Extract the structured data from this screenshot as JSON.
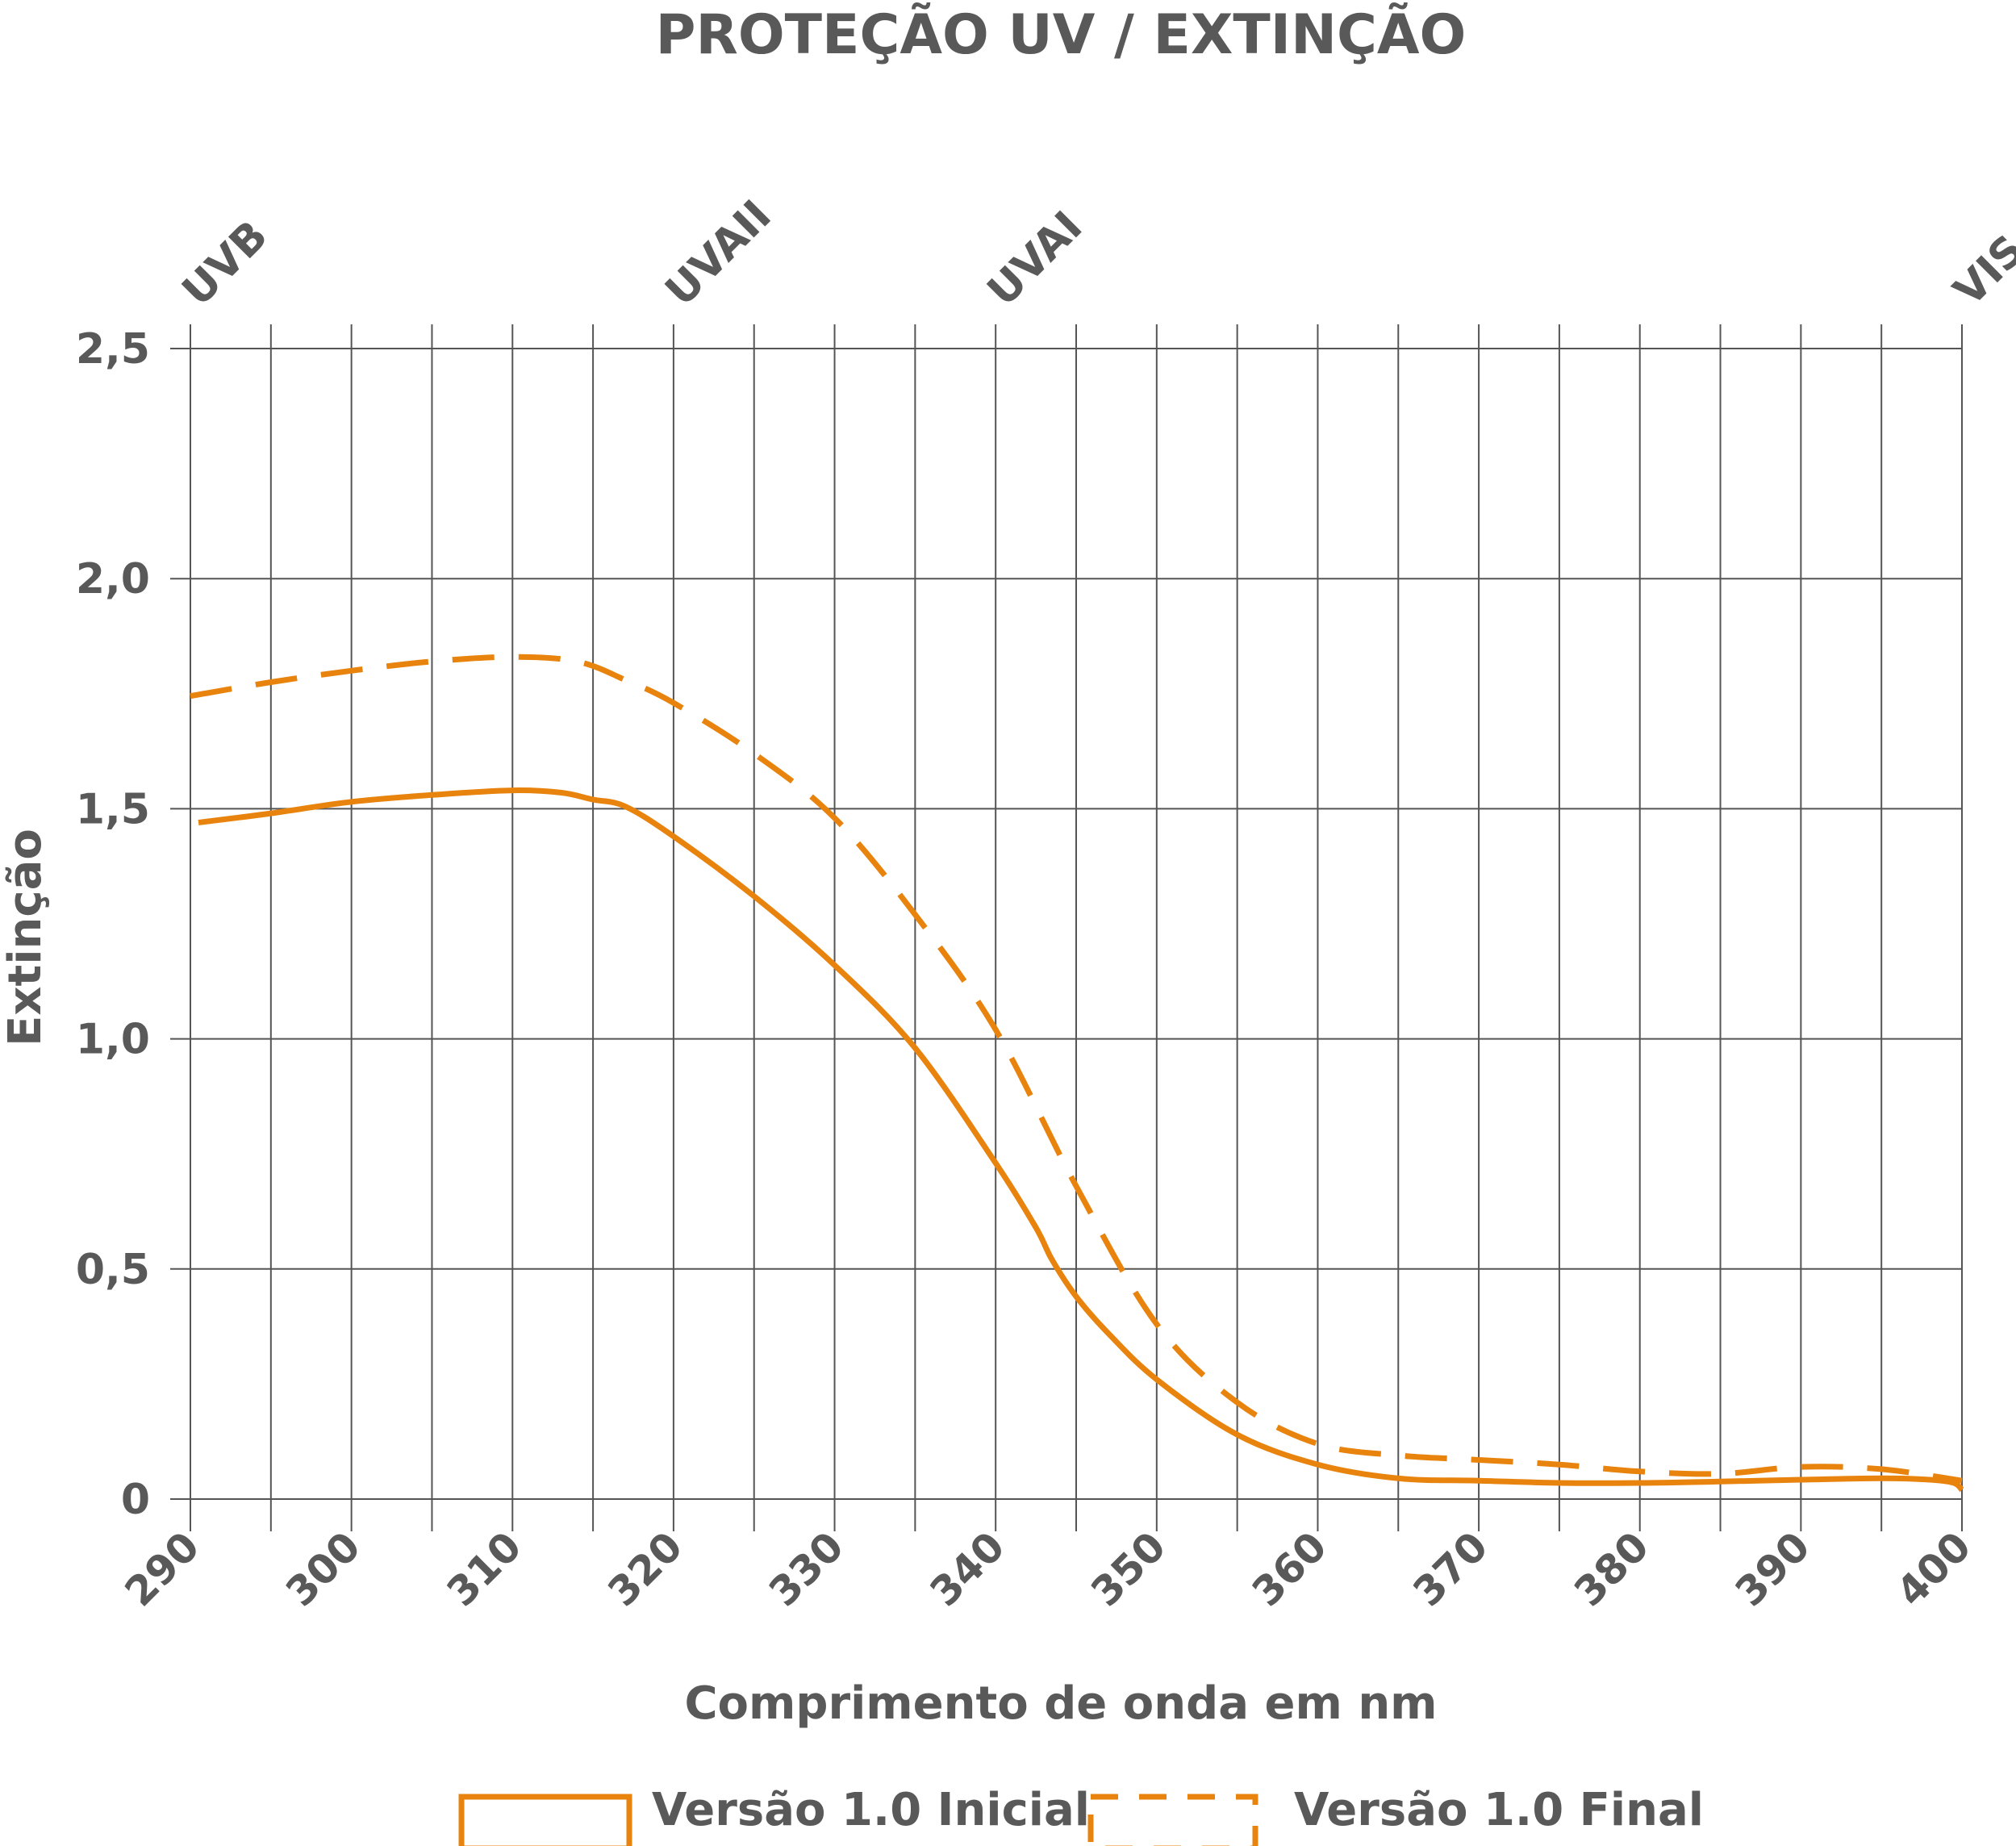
{
  "chart_data": {
    "type": "line",
    "title": "PROTEÇÃO UV / EXTINÇÃO",
    "xlabel": "Comprimento de onda em nm",
    "ylabel": "Extinção",
    "xlim": [
      290,
      400
    ],
    "ylim": [
      0,
      2.5
    ],
    "grid": true,
    "x_minor_gridlines": true,
    "legend_position": "bottom",
    "x_ticks": [
      {
        "value": 290,
        "label": "290"
      },
      {
        "value": 300,
        "label": "300"
      },
      {
        "value": 310,
        "label": "310"
      },
      {
        "value": 320,
        "label": "320"
      },
      {
        "value": 330,
        "label": "330"
      },
      {
        "value": 340,
        "label": "340"
      },
      {
        "value": 350,
        "label": "350"
      },
      {
        "value": 360,
        "label": "360"
      },
      {
        "value": 370,
        "label": "370"
      },
      {
        "value": 380,
        "label": "380"
      },
      {
        "value": 390,
        "label": "390"
      },
      {
        "value": 400,
        "label": "400"
      }
    ],
    "y_ticks": [
      {
        "value": 0,
        "label": "0"
      },
      {
        "value": 0.5,
        "label": "0,5"
      },
      {
        "value": 1.0,
        "label": "1,0"
      },
      {
        "value": 1.5,
        "label": "1,5"
      },
      {
        "value": 2.0,
        "label": "2,0"
      },
      {
        "value": 2.5,
        "label": "2,5"
      }
    ],
    "regions": [
      {
        "label": "UVB",
        "x": 290
      },
      {
        "label": "UVAII",
        "x": 320
      },
      {
        "label": "UVAI",
        "x": 340
      },
      {
        "label": "VIS",
        "x": 400
      }
    ],
    "series": [
      {
        "name": "Versão 1.0 Inicial",
        "style": "solid",
        "color": "#E8830E",
        "x": [
          290.5,
          295,
          300,
          305,
          310,
          313,
          315,
          317,
          320,
          325,
          330,
          335,
          340,
          342.5,
          343.5,
          345,
          347,
          350,
          355,
          360,
          365,
          370,
          375,
          380,
          385,
          390,
          395,
          398,
          399.5,
          400
        ],
        "y": [
          1.47,
          1.49,
          1.515,
          1.53,
          1.54,
          1.535,
          1.52,
          1.505,
          1.44,
          1.31,
          1.16,
          0.98,
          0.73,
          0.59,
          0.52,
          0.44,
          0.36,
          0.26,
          0.14,
          0.075,
          0.045,
          0.04,
          0.035,
          0.035,
          0.038,
          0.042,
          0.045,
          0.042,
          0.035,
          0.02
        ]
      },
      {
        "name": "Versão 1.0 Final",
        "style": "dashed",
        "color": "#E8830E",
        "x": [
          290,
          295,
          300,
          305,
          310,
          314,
          317,
          320,
          325,
          330,
          335,
          340,
          345,
          350,
          355,
          360,
          365,
          370,
          375,
          380,
          385,
          390,
          395,
          400
        ],
        "y": [
          1.745,
          1.775,
          1.8,
          1.82,
          1.83,
          1.82,
          1.78,
          1.73,
          1.62,
          1.48,
          1.27,
          1.02,
          0.68,
          0.38,
          0.21,
          0.12,
          0.095,
          0.085,
          0.075,
          0.06,
          0.055,
          0.07,
          0.065,
          0.04
        ]
      }
    ]
  }
}
